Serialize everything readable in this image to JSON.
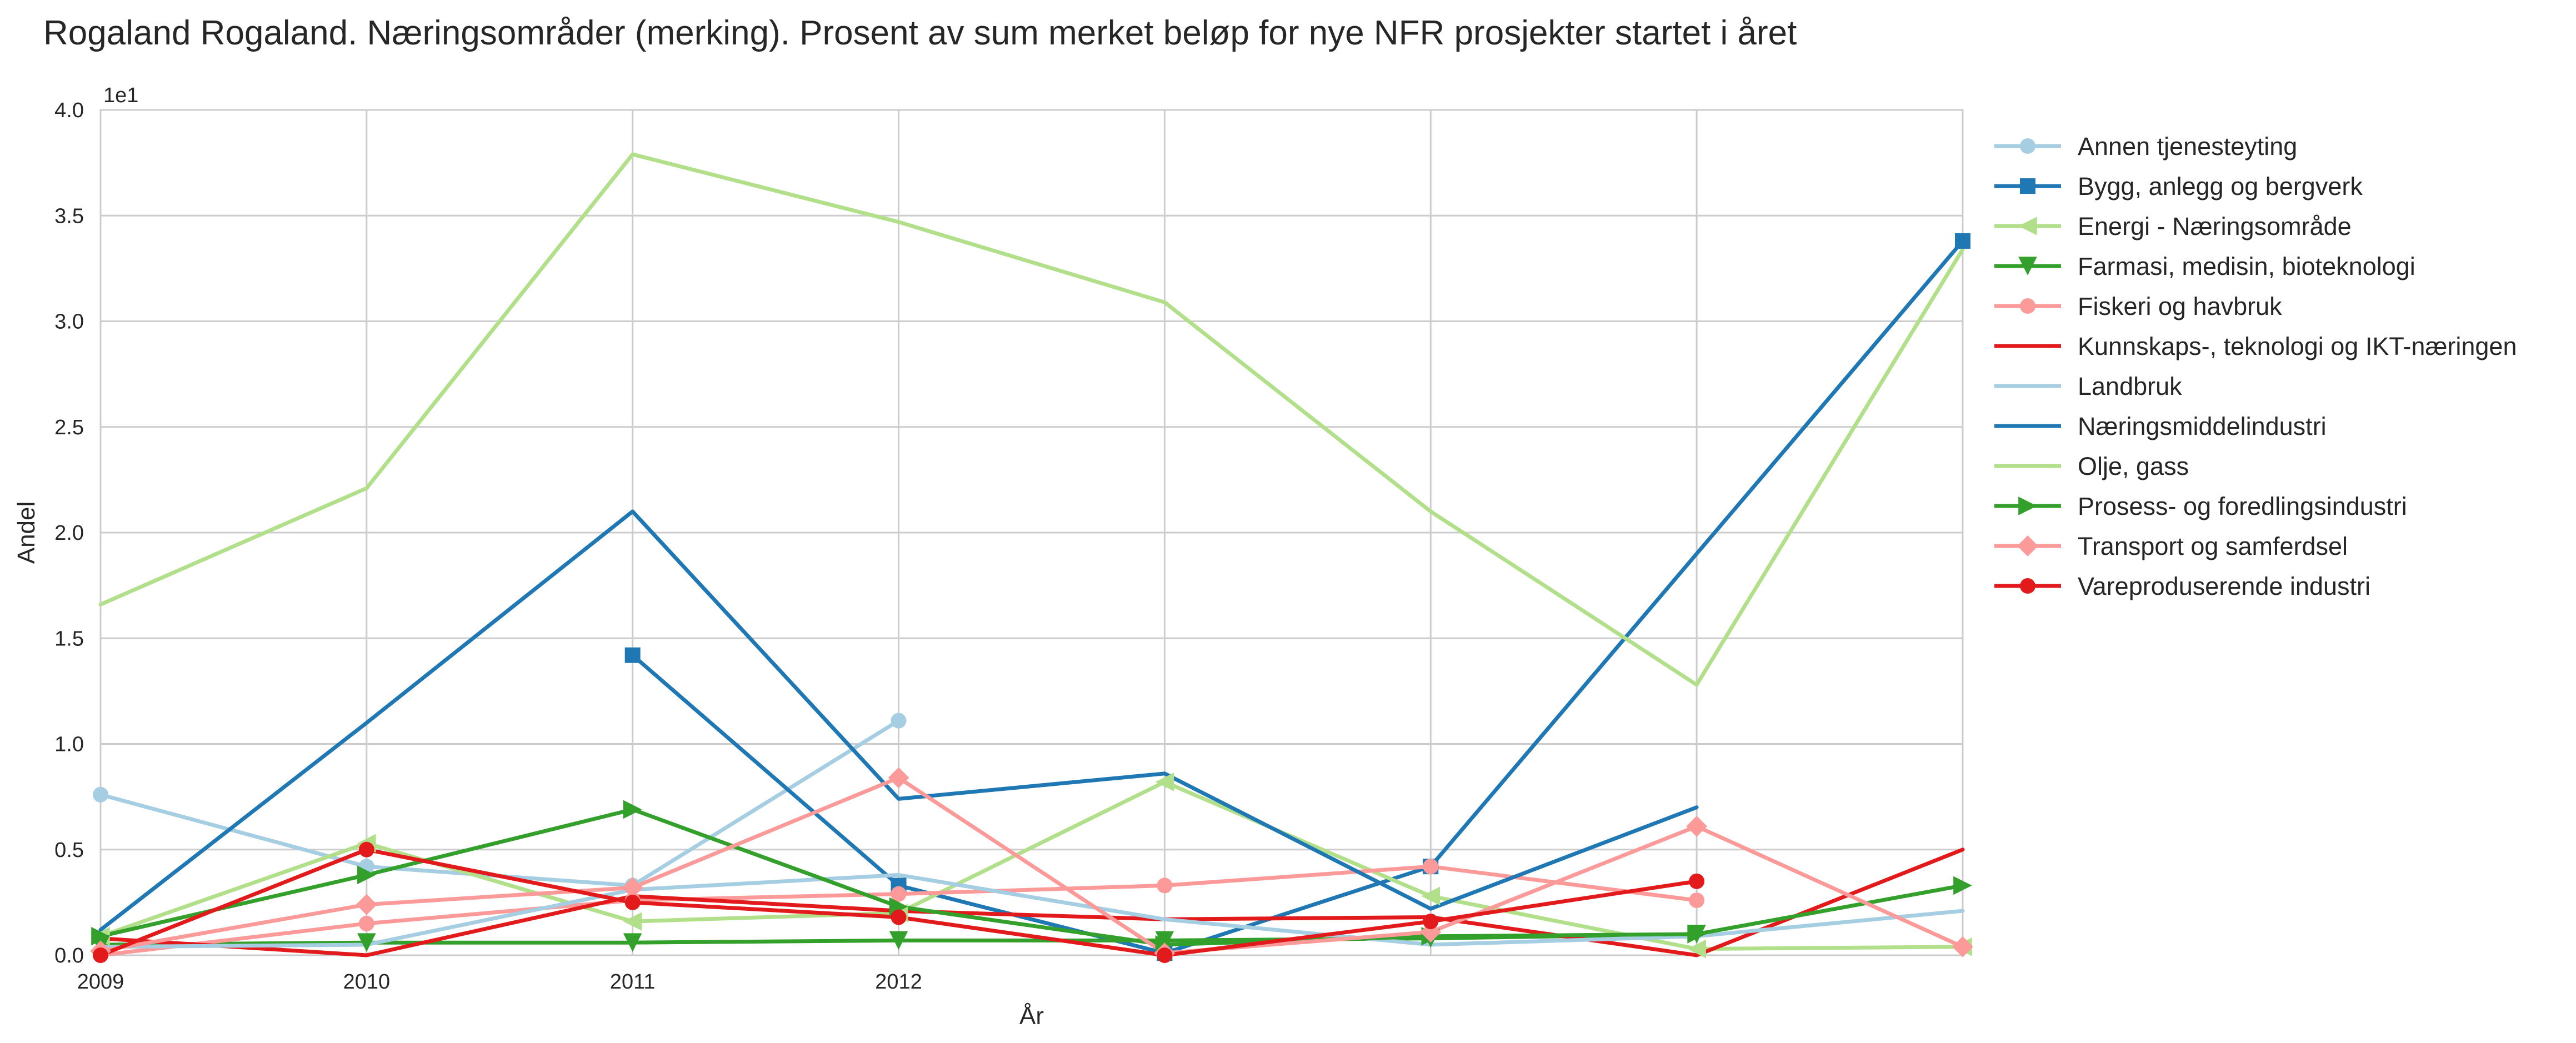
{
  "chart_data": {
    "type": "line",
    "title": "Rogaland Rogaland. Næringsområder (merking). Prosent av sum merket beløp for nye NFR prosjekter startet i året",
    "xlabel": "År",
    "ylabel": "Andel",
    "y_offset_label": "1e1",
    "x_tick_labels": [
      "2009",
      "2010",
      "2011",
      "2012"
    ],
    "y_tick_labels": [
      "0.0",
      "0.5",
      "1.0",
      "1.5",
      "2.0",
      "2.5",
      "3.0",
      "3.5",
      "4.0"
    ],
    "xlim": [
      2009,
      2016
    ],
    "ylim": [
      0,
      40
    ],
    "grid": true,
    "legend_position": "outside right",
    "series": [
      {
        "name": "Annen tjenesteyting",
        "color": "#a6cee3",
        "marker": "circle",
        "points": [
          [
            2009,
            7.6
          ],
          [
            2010,
            4.2
          ],
          [
            2011,
            3.3
          ],
          [
            2012,
            11.1
          ]
        ]
      },
      {
        "name": "Bygg, anlegg og bergverk",
        "color": "#1f78b4",
        "marker": "square",
        "points": [
          [
            2011,
            14.2
          ],
          [
            2012,
            3.3
          ],
          [
            2013,
            0.1
          ],
          [
            2014,
            4.2
          ],
          [
            2016,
            33.8
          ]
        ]
      },
      {
        "name": "Energi - Næringsområde",
        "color": "#b2df8a",
        "marker": "triangle-left",
        "points": [
          [
            2009,
            0.9
          ],
          [
            2010,
            5.3
          ],
          [
            2011,
            1.6
          ],
          [
            2012,
            2.0
          ],
          [
            2013,
            8.2
          ],
          [
            2014,
            2.8
          ],
          [
            2015,
            0.3
          ],
          [
            2016,
            0.4
          ]
        ]
      },
      {
        "name": "Farmasi, medisin, bioteknologi",
        "color": "#33a02c",
        "marker": "triangle-down",
        "points": [
          [
            2009,
            0.5
          ],
          [
            2010,
            0.6
          ],
          [
            2011,
            0.6
          ],
          [
            2012,
            0.7
          ],
          [
            2013,
            0.7
          ],
          [
            2014,
            0.8
          ],
          [
            2015,
            1.0
          ]
        ]
      },
      {
        "name": "Fiskeri og havbruk",
        "color": "#fb9a99",
        "marker": "circle",
        "points": [
          [
            2009,
            0.0
          ],
          [
            2010,
            1.5
          ],
          [
            2011,
            2.6
          ],
          [
            2012,
            2.9
          ],
          [
            2013,
            3.3
          ],
          [
            2014,
            4.2
          ],
          [
            2015,
            2.6
          ]
        ]
      },
      {
        "name": "Kunnskaps-, teknologi og IKT-næringen",
        "color": "#e31a1c",
        "marker": "none",
        "points": [
          [
            2009,
            0.8
          ],
          [
            2010,
            0.0
          ],
          [
            2011,
            2.8
          ],
          [
            2012,
            2.1
          ],
          [
            2013,
            1.7
          ],
          [
            2014,
            1.8
          ],
          [
            2015,
            0.0
          ],
          [
            2016,
            5.0
          ]
        ]
      },
      {
        "name": "Landbruk",
        "color": "#a6cee3",
        "marker": "none",
        "points": [
          [
            2009,
            0.4
          ],
          [
            2010,
            0.5
          ],
          [
            2011,
            3.1
          ],
          [
            2012,
            3.8
          ],
          [
            2013,
            1.7
          ],
          [
            2014,
            0.5
          ],
          [
            2015,
            0.9
          ],
          [
            2016,
            2.1
          ]
        ]
      },
      {
        "name": "Næringsmiddelindustri",
        "color": "#1f78b4",
        "marker": "none",
        "points": [
          [
            2009,
            1.2
          ],
          [
            2010,
            11.0
          ],
          [
            2011,
            21.0
          ],
          [
            2012,
            7.4
          ],
          [
            2013,
            8.6
          ],
          [
            2014,
            2.2
          ],
          [
            2015,
            7.0
          ]
        ]
      },
      {
        "name": "Olje, gass",
        "color": "#b2df8a",
        "marker": "none",
        "points": [
          [
            2009,
            16.6
          ],
          [
            2010,
            22.1
          ],
          [
            2011,
            37.9
          ],
          [
            2012,
            34.7
          ],
          [
            2013,
            30.9
          ],
          [
            2014,
            21.0
          ],
          [
            2015,
            12.8
          ],
          [
            2016,
            33.4
          ]
        ]
      },
      {
        "name": "Prosess- og foredlingsindustri",
        "color": "#33a02c",
        "marker": "triangle-right",
        "points": [
          [
            2009,
            0.9
          ],
          [
            2010,
            3.8
          ],
          [
            2011,
            6.9
          ],
          [
            2012,
            2.3
          ],
          [
            2013,
            0.5
          ],
          [
            2014,
            0.9
          ],
          [
            2015,
            1.0
          ],
          [
            2016,
            3.3
          ]
        ]
      },
      {
        "name": "Transport og samferdsel",
        "color": "#fb9a99",
        "marker": "diamond",
        "points": [
          [
            2009,
            0.2
          ],
          [
            2010,
            2.4
          ],
          [
            2011,
            3.2
          ],
          [
            2012,
            8.4
          ],
          [
            2013,
            0.1
          ],
          [
            2014,
            1.1
          ],
          [
            2015,
            6.1
          ],
          [
            2016,
            0.4
          ]
        ]
      },
      {
        "name": "Vareproduserende industri",
        "color": "#e31a1c",
        "marker": "circle",
        "points": [
          [
            2009,
            0.0
          ],
          [
            2010,
            5.0
          ],
          [
            2011,
            2.5
          ],
          [
            2012,
            1.8
          ],
          [
            2013,
            0.0
          ],
          [
            2014,
            1.6
          ],
          [
            2015,
            3.5
          ]
        ]
      }
    ]
  }
}
